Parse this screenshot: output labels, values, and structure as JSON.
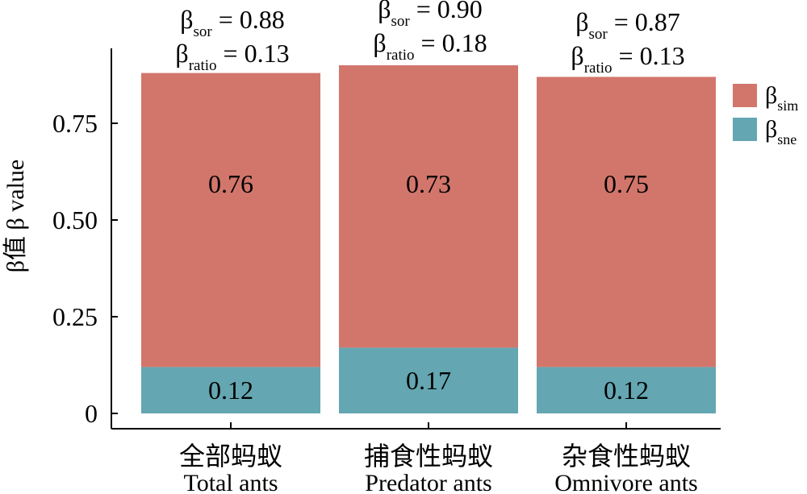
{
  "chart_data": {
    "type": "bar",
    "stacked": true,
    "ylabel": "β值 β value",
    "ylim": [
      0,
      0.9
    ],
    "yticks": [
      {
        "value": 0,
        "label": "0"
      },
      {
        "value": 0.25,
        "label": "0.25"
      },
      {
        "value": 0.5,
        "label": "0.50"
      },
      {
        "value": 0.75,
        "label": "0.75"
      }
    ],
    "categories": [
      {
        "zh": "全部蚂蚁",
        "en": "Total ants"
      },
      {
        "zh": "捕食性蚂蚁",
        "en": "Predator ants"
      },
      {
        "zh": "杂食性蚂蚁",
        "en": "Omnivore ants"
      }
    ],
    "series": [
      {
        "symbol": "β",
        "sub": "sne",
        "color": "#64a6b1",
        "values": [
          0.12,
          0.17,
          0.12
        ],
        "labels": [
          "0.12",
          "0.17",
          "0.12"
        ]
      },
      {
        "symbol": "β",
        "sub": "sim",
        "color": "#d2766c",
        "values": [
          0.76,
          0.73,
          0.75
        ],
        "labels": [
          "0.76",
          "0.73",
          "0.75"
        ]
      }
    ],
    "annotations": [
      {
        "sor_value": "0.88",
        "ratio_value": "0.13"
      },
      {
        "sor_value": "0.90",
        "ratio_value": "0.18"
      },
      {
        "sor_value": "0.87",
        "ratio_value": "0.13"
      }
    ],
    "annotation_symbol": "β",
    "annotation_sor_sub": "sor",
    "annotation_ratio_sub": "ratio",
    "legend_order": [
      "sim",
      "sne"
    ],
    "legend_position": "right",
    "grid": false
  }
}
